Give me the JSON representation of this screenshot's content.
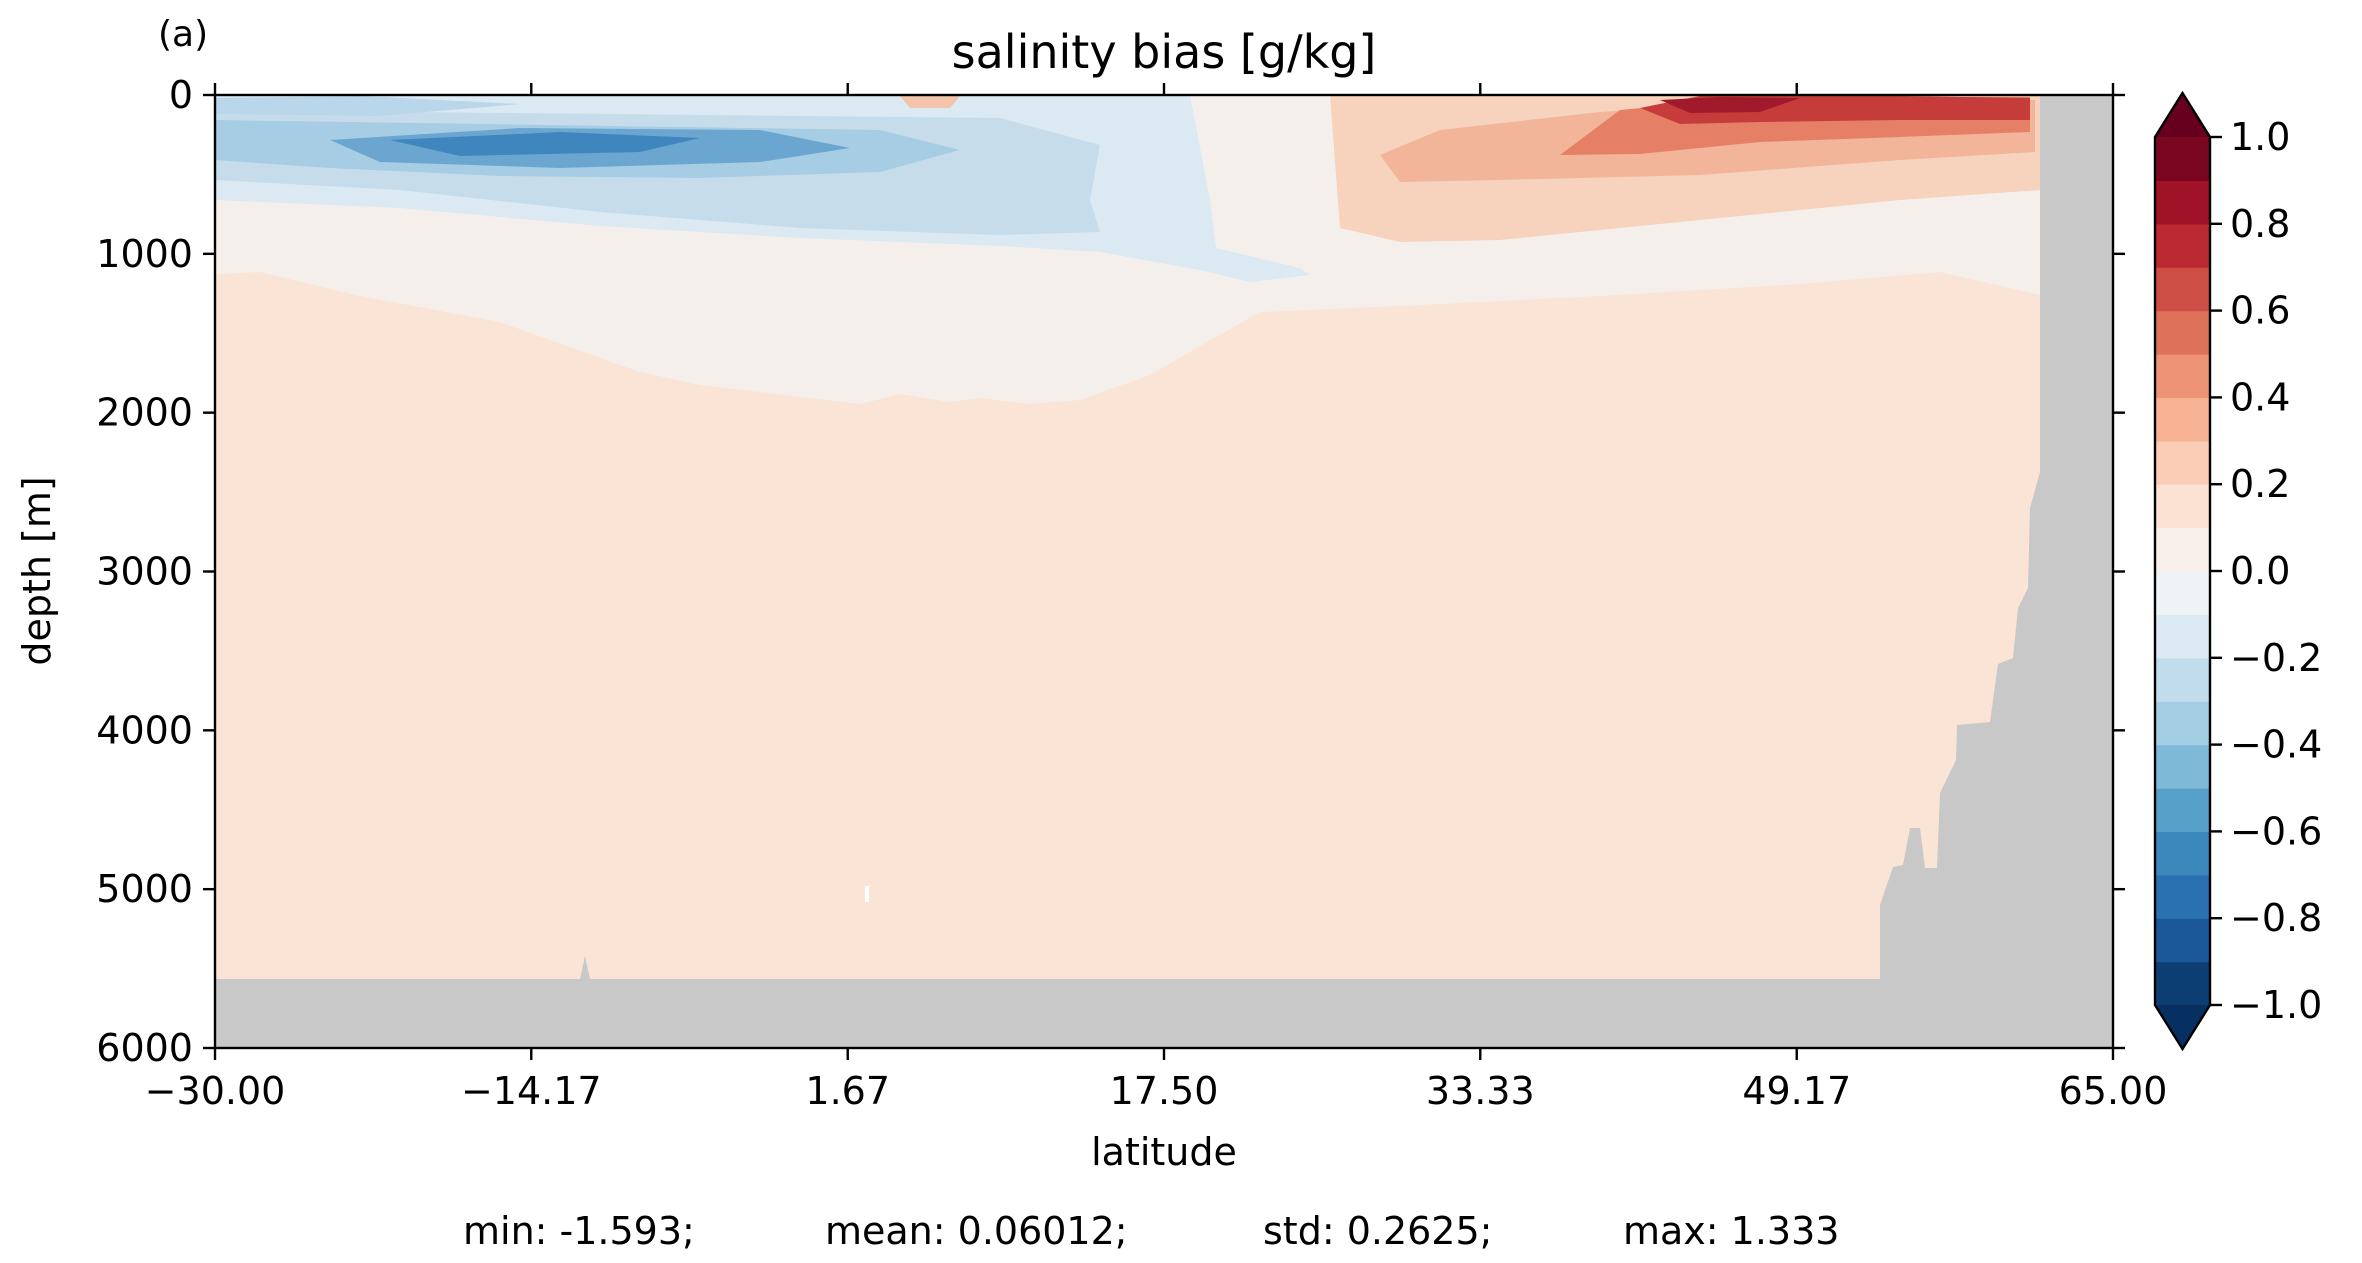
{
  "panel_label": "(a)",
  "chart_data": {
    "type": "heatmap",
    "title": "salinity bias [g/kg]",
    "xlabel": "latitude",
    "ylabel": "depth [m]",
    "xlim": [
      -30.0,
      65.0
    ],
    "ylim": [
      6000,
      0
    ],
    "x_ticks": [
      "−30.00",
      "−14.17",
      "1.67",
      "17.50",
      "33.33",
      "49.17",
      "65.00"
    ],
    "x_tick_values": [
      -30.0,
      -14.17,
      1.67,
      17.5,
      33.33,
      49.17,
      65.0
    ],
    "y_ticks": [
      "0",
      "1000",
      "2000",
      "3000",
      "4000",
      "5000",
      "6000"
    ],
    "y_tick_values": [
      0,
      1000,
      2000,
      3000,
      4000,
      5000,
      6000
    ],
    "colorbar": {
      "colormap": "RdBu_r",
      "vmin": -1.0,
      "vmax": 1.0,
      "step": 0.1,
      "extend": "both",
      "tick_values": [
        1.0,
        0.8,
        0.6,
        0.4,
        0.2,
        0.0,
        -0.2,
        -0.4,
        -0.6,
        -0.8,
        -1.0
      ],
      "tick_labels": [
        "1.0",
        "0.8",
        "0.6",
        "0.4",
        "0.2",
        "0.0",
        "−0.2",
        "−0.4",
        "−0.6",
        "−0.8",
        "−1.0"
      ]
    },
    "land_mask_color": "#c8c8c8",
    "stats": {
      "min": "min: -1.593;",
      "mean": "mean: 0.06012;",
      "std": "std: 0.2625;",
      "max": "max: 1.333"
    }
  }
}
